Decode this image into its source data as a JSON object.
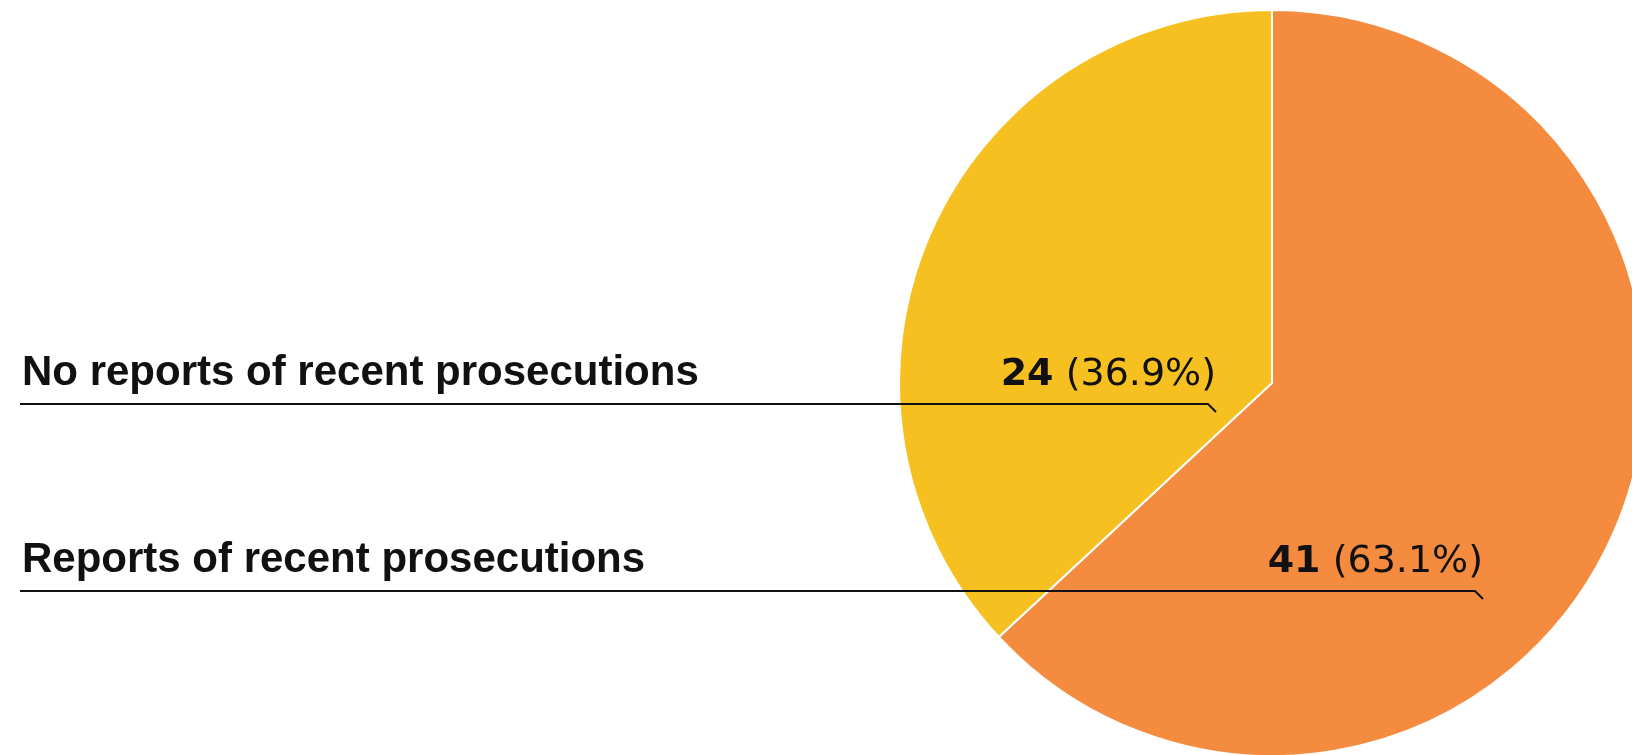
{
  "chart_data": {
    "type": "pie",
    "categories": [
      "Reports of recent prosecutions",
      "No reports of recent prosecutions"
    ],
    "values": [
      41,
      24
    ],
    "colors": [
      "#f58b3f",
      "#f6c120"
    ],
    "value_labels": [
      "41 (63.1%)",
      "24 (36.9%)"
    ]
  }
}
